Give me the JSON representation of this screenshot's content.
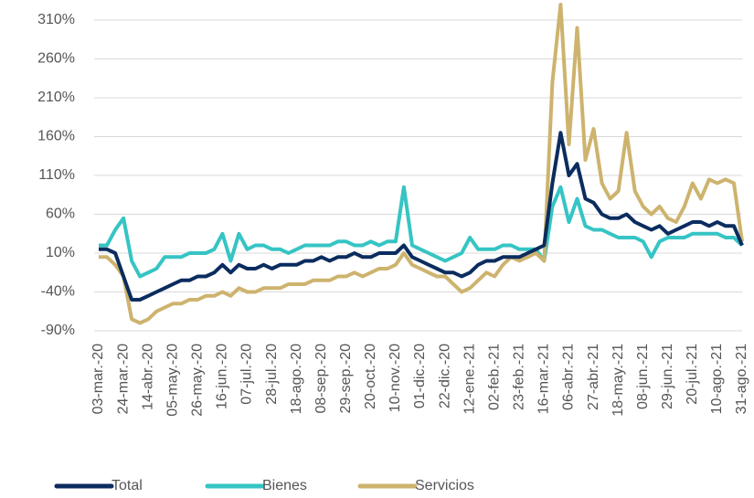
{
  "chart_data": {
    "type": "line",
    "categories": [
      "03-mar.-20",
      null,
      null,
      "24-mar.-20",
      null,
      null,
      "14-abr.-20",
      null,
      null,
      "05-may.-20",
      null,
      null,
      "26-may.-20",
      null,
      null,
      "16-jun.-20",
      null,
      null,
      "07-jul.-20",
      null,
      null,
      "28-jul.-20",
      null,
      null,
      "18-ago.-20",
      null,
      null,
      "08-sep.-20",
      null,
      null,
      "29-sep.-20",
      null,
      null,
      "20-oct.-20",
      null,
      null,
      "10-nov.-20",
      null,
      null,
      "01-dic.-20",
      null,
      null,
      "22-dic.-20",
      null,
      null,
      "12-ene.-21",
      null,
      null,
      "02-feb.-21",
      null,
      null,
      "23-feb.-21",
      null,
      null,
      "16-mar.-21",
      null,
      null,
      "06-abr.-21",
      null,
      null,
      "27-abr.-21",
      null,
      null,
      "18-may.-21",
      null,
      null,
      "08-jun.-21",
      null,
      null,
      "29-jun.-21",
      null,
      null,
      "20-jul.-21",
      null,
      null,
      "10-ago.-21",
      null,
      null,
      "31-ago.-21"
    ],
    "series": [
      {
        "name": "Total",
        "color": "#0b2c5f",
        "values": [
          15,
          15,
          10,
          -20,
          -50,
          -50,
          -45,
          -40,
          -35,
          -30,
          -25,
          -25,
          -20,
          -20,
          -15,
          -5,
          -15,
          -5,
          -10,
          -10,
          -5,
          -10,
          -5,
          -5,
          -5,
          0,
          0,
          5,
          0,
          5,
          5,
          10,
          5,
          5,
          10,
          10,
          10,
          20,
          5,
          0,
          -5,
          -10,
          -15,
          -15,
          -20,
          -15,
          -5,
          0,
          0,
          5,
          5,
          5,
          10,
          15,
          20,
          100,
          165,
          110,
          125,
          80,
          75,
          60,
          55,
          55,
          60,
          50,
          45,
          40,
          45,
          35,
          40,
          45,
          50,
          50,
          45,
          50,
          45,
          45,
          20
        ]
      },
      {
        "name": "Bienes",
        "color": "#36c4c4",
        "values": [
          20,
          20,
          40,
          55,
          0,
          -20,
          -15,
          -10,
          5,
          5,
          5,
          10,
          10,
          10,
          15,
          35,
          0,
          35,
          15,
          20,
          20,
          15,
          15,
          10,
          15,
          20,
          20,
          20,
          20,
          25,
          25,
          20,
          20,
          25,
          20,
          25,
          25,
          95,
          20,
          15,
          10,
          5,
          0,
          5,
          10,
          30,
          15,
          15,
          15,
          20,
          20,
          15,
          15,
          15,
          0,
          70,
          95,
          50,
          80,
          45,
          40,
          40,
          35,
          30,
          30,
          30,
          25,
          5,
          25,
          30,
          30,
          30,
          35,
          35,
          35,
          35,
          30,
          30,
          20
        ]
      },
      {
        "name": "Servicios",
        "color": "#cdb36e",
        "values": [
          5,
          5,
          -5,
          -20,
          -75,
          -80,
          -75,
          -65,
          -60,
          -55,
          -55,
          -50,
          -50,
          -45,
          -45,
          -40,
          -45,
          -35,
          -40,
          -40,
          -35,
          -35,
          -35,
          -30,
          -30,
          -30,
          -25,
          -25,
          -25,
          -20,
          -20,
          -15,
          -20,
          -15,
          -10,
          -10,
          -5,
          10,
          -5,
          -10,
          -15,
          -20,
          -20,
          -30,
          -40,
          -35,
          -25,
          -15,
          -20,
          -5,
          5,
          0,
          5,
          10,
          0,
          230,
          330,
          150,
          300,
          130,
          170,
          100,
          80,
          90,
          165,
          90,
          70,
          60,
          70,
          55,
          50,
          70,
          100,
          80,
          105,
          100,
          105,
          100,
          25
        ]
      }
    ],
    "ylim": [
      -90,
      310
    ],
    "yticks": [
      {
        "value": -90,
        "label": "-90%"
      },
      {
        "value": -40,
        "label": "-40%"
      },
      {
        "value": 10,
        "label": "10%"
      },
      {
        "value": 60,
        "label": "60%"
      },
      {
        "value": 110,
        "label": "110%"
      },
      {
        "value": 160,
        "label": "160%"
      },
      {
        "value": 210,
        "label": "210%"
      },
      {
        "value": 260,
        "label": "260%"
      },
      {
        "value": 310,
        "label": "310%"
      }
    ],
    "grid": true
  }
}
